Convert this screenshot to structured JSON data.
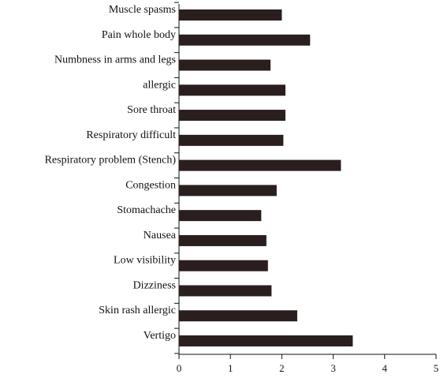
{
  "chart_data": {
    "type": "bar",
    "orientation": "horizontal",
    "categories": [
      "Muscle spasms",
      "Pain whole body",
      "Numbness in arms and legs",
      "allergic",
      "Sore throat",
      "Respiratory difficult",
      "Respiratory problem (Stench)",
      "Congestion",
      "Stomachache",
      "Nausea",
      "Low visibility",
      "Dizziness",
      "Skin rash allergic",
      "Vertigo"
    ],
    "values": [
      2.0,
      2.55,
      1.78,
      2.07,
      2.07,
      2.03,
      3.15,
      1.9,
      1.6,
      1.7,
      1.73,
      1.8,
      2.3,
      3.38
    ],
    "xlim": [
      0,
      5
    ],
    "xticks": [
      "0",
      "1",
      "2",
      "3",
      "4",
      "5"
    ],
    "title": "",
    "xlabel": "",
    "ylabel": "",
    "bar_color": "#2a1e1e",
    "grid": false,
    "legend": "none"
  }
}
